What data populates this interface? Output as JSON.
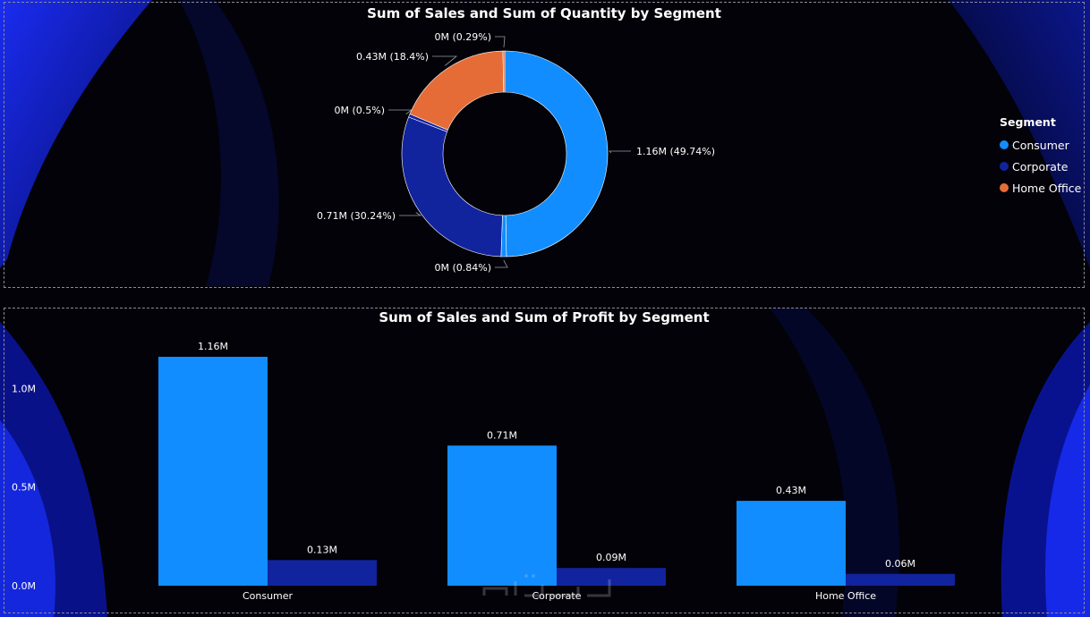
{
  "colors": {
    "consumer": "#118DFF",
    "corporate": "#12239E",
    "home_office": "#E66C37",
    "background": "#020208",
    "label": "#ffffff"
  },
  "chart_data": [
    {
      "type": "pie",
      "title": "Sum of Sales and Sum of Quantity by Segment",
      "legend_title": "Segment",
      "legend_position": "right",
      "legend": [
        "Consumer",
        "Corporate",
        "Home Office"
      ],
      "slices": [
        {
          "name": "Consumer",
          "label": "1.16M (49.74%)",
          "percent": 49.74,
          "color": "#118DFF"
        },
        {
          "name": "Consumer-small",
          "label": "0M (0.84%)",
          "percent": 0.84,
          "color": "#118DFF"
        },
        {
          "name": "Corporate",
          "label": "0.71M (30.24%)",
          "percent": 30.24,
          "color": "#12239E"
        },
        {
          "name": "Corporate-small",
          "label": "0M (0.5%)",
          "percent": 0.5,
          "color": "#12239E"
        },
        {
          "name": "Home Office",
          "label": "0.43M (18.4%)",
          "percent": 18.4,
          "color": "#E66C37"
        },
        {
          "name": "Home Office-small",
          "label": "0M (0.29%)",
          "percent": 0.29,
          "color": "#E66C37"
        }
      ]
    },
    {
      "type": "bar",
      "title": "Sum of Sales and Sum of Profit by Segment",
      "categories": [
        "Consumer",
        "Corporate",
        "Home Office"
      ],
      "series": [
        {
          "name": "Sum of Sales",
          "values": [
            1.16,
            0.71,
            0.43
          ],
          "labels": [
            "1.16M",
            "0.71M",
            "0.43M"
          ],
          "color": "#118DFF"
        },
        {
          "name": "Sum of Profit",
          "values": [
            0.13,
            0.09,
            0.06
          ],
          "labels": [
            "0.13M",
            "0.09M",
            "0.06M"
          ],
          "color": "#12239E"
        }
      ],
      "yticks": [
        {
          "value": 0,
          "label": "0.0M"
        },
        {
          "value": 0.5,
          "label": "0.5M"
        },
        {
          "value": 1.0,
          "label": "1.0M"
        }
      ],
      "ylim": [
        0,
        1.16
      ]
    }
  ]
}
